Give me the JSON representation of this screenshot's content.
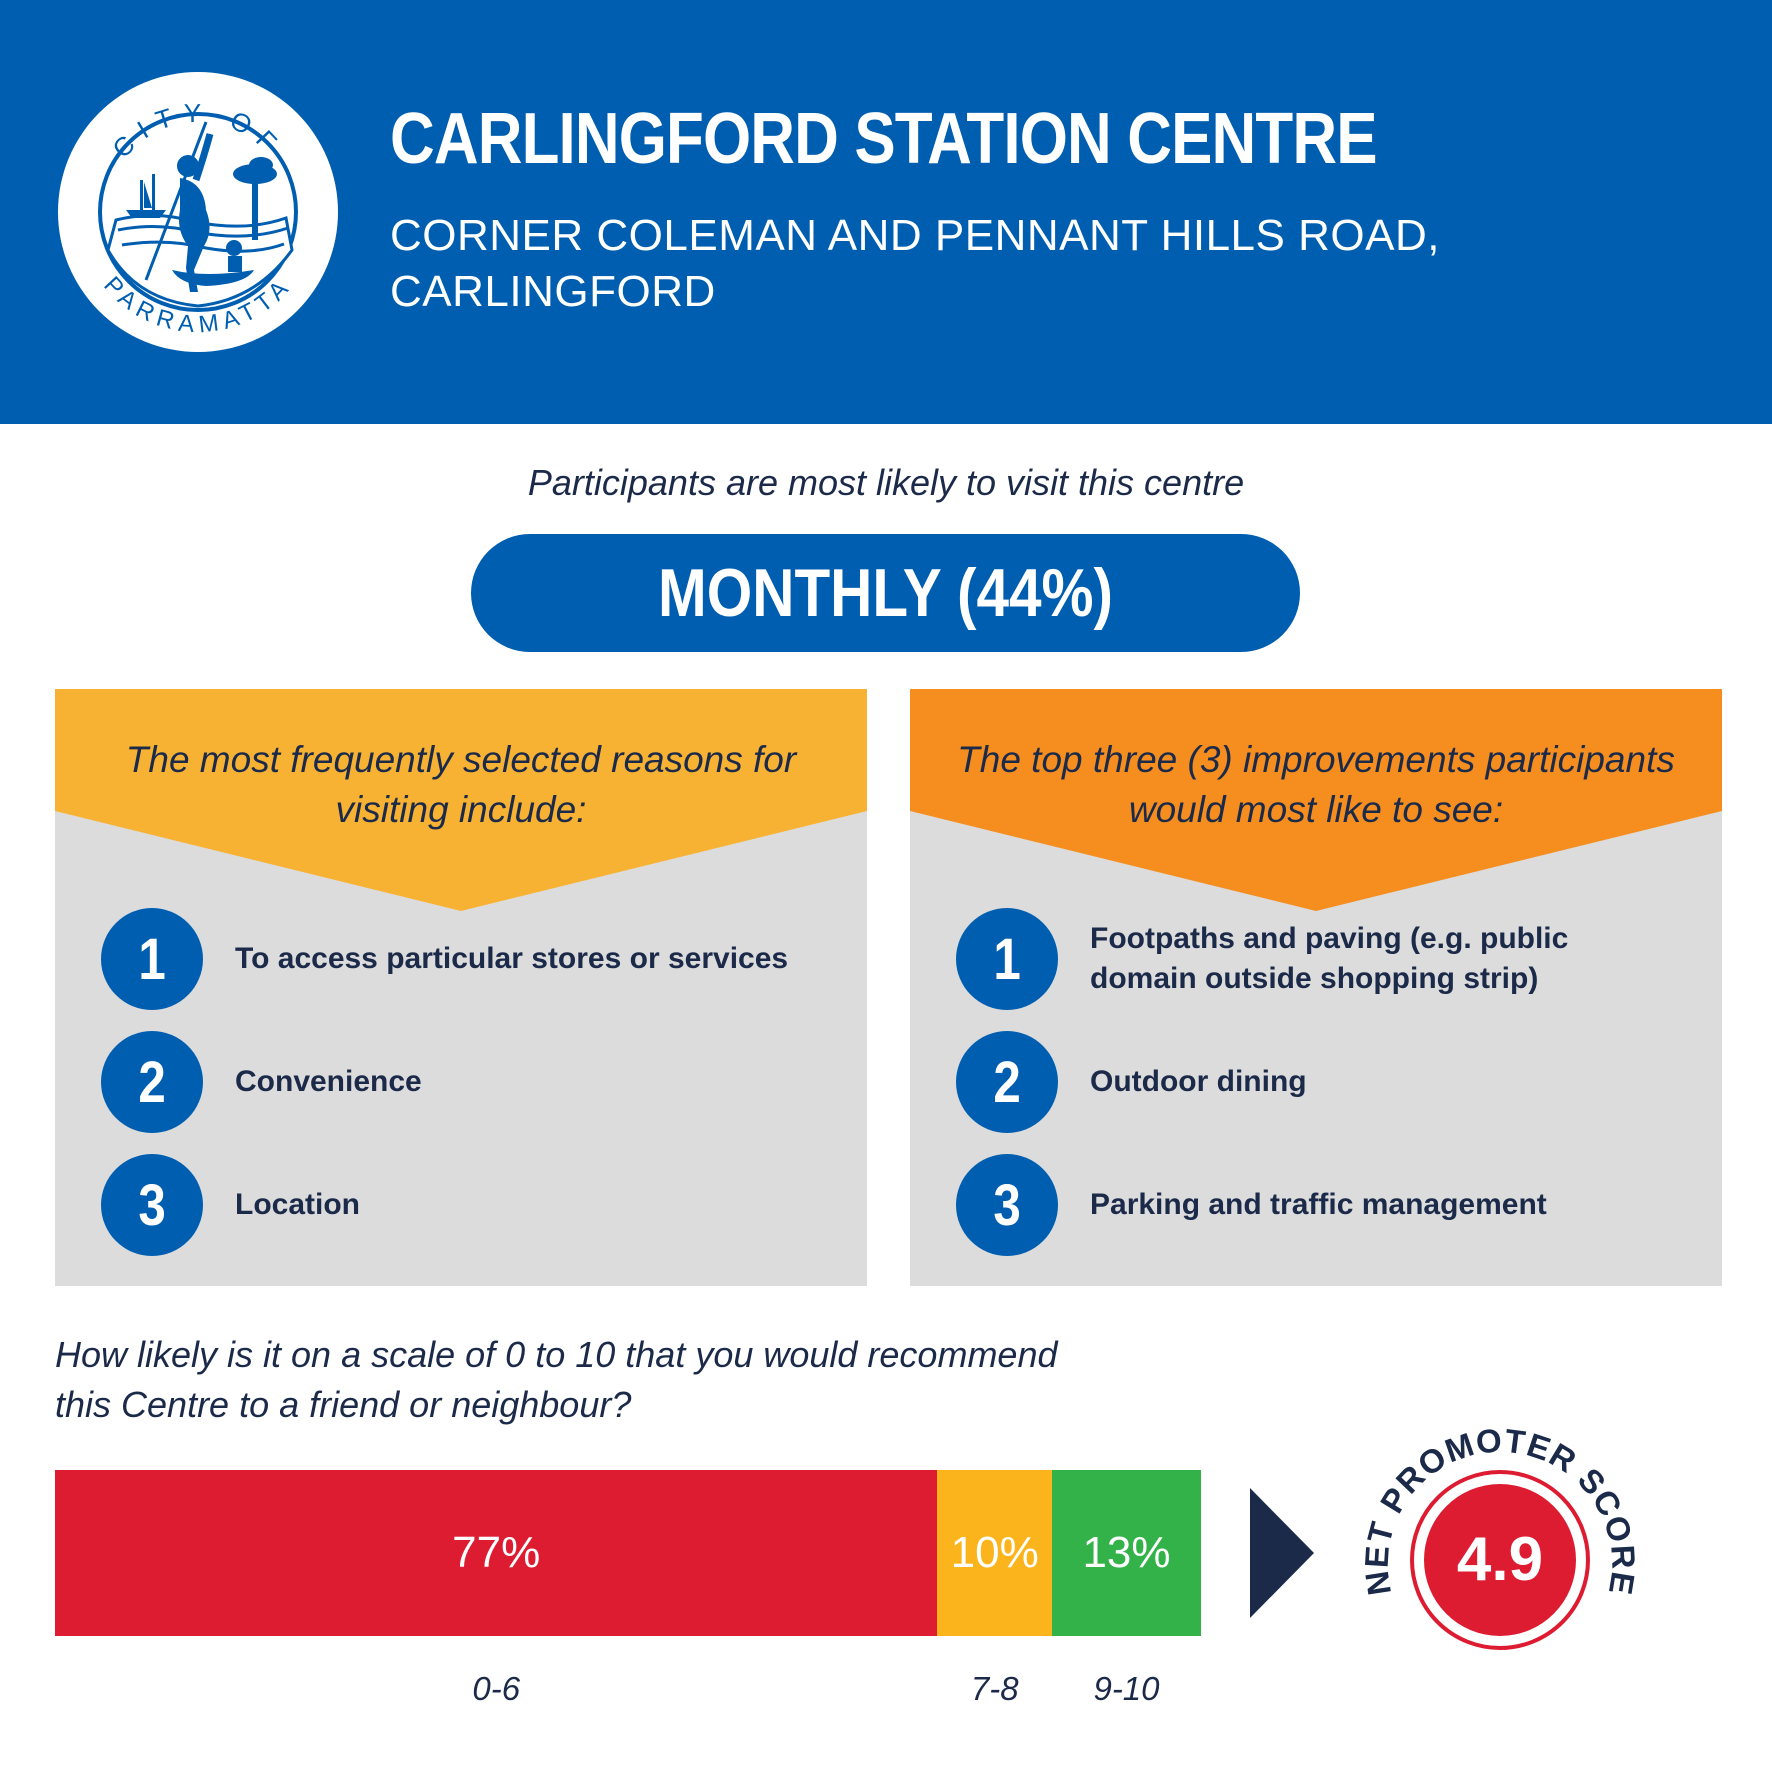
{
  "header": {
    "logo": {
      "text_top": "CITY OF",
      "text_bottom": "PARRAMATTA"
    },
    "title": "CARLINGFORD STATION CENTRE",
    "subtitle_line1": "CORNER COLEMAN AND PENNANT HILLS ROAD,",
    "subtitle_line2": "CARLINGFORD"
  },
  "visit": {
    "intro": "Participants are most likely to visit this centre",
    "frequency": "MONTHLY (44%)"
  },
  "reasons": {
    "heading_line1": "The most frequently selected reasons for",
    "heading_line2": "visiting include:",
    "color": "#f8b233",
    "items": [
      {
        "rank": "1",
        "text": "To access particular stores or services"
      },
      {
        "rank": "2",
        "text": "Convenience"
      },
      {
        "rank": "3",
        "text": "Location"
      }
    ]
  },
  "improvements": {
    "heading_line1": "The top three (3) improvements participants",
    "heading_line2": "would most like to see:",
    "color": "#f58e1f",
    "items": [
      {
        "rank": "1",
        "text": "Footpaths and paving (e.g. public domain outside shopping strip)"
      },
      {
        "rank": "2",
        "text": "Outdoor dining"
      },
      {
        "rank": "3",
        "text": "Parking and traffic management"
      }
    ]
  },
  "recommend": {
    "question_line1": "How likely is it on a scale of 0 to 10 that you would recommend",
    "question_line2": "this Centre to a friend or neighbour?",
    "segments": [
      {
        "label": "0-6",
        "value": 77,
        "display": "77%",
        "color": "#dd1c32"
      },
      {
        "label": "7-8",
        "value": 10,
        "display": "10%",
        "color": "#fbb41b"
      },
      {
        "label": "9-10",
        "value": 13,
        "display": "13%",
        "color": "#34b24a"
      }
    ],
    "nps_label": "NET PROMOTER SCORE",
    "nps_value": "4.9"
  },
  "colors": {
    "brand_blue": "#005eb0",
    "navy": "#1c2a4a",
    "panel_grey": "#dcdcdc",
    "nps_red": "#dd1c32"
  }
}
